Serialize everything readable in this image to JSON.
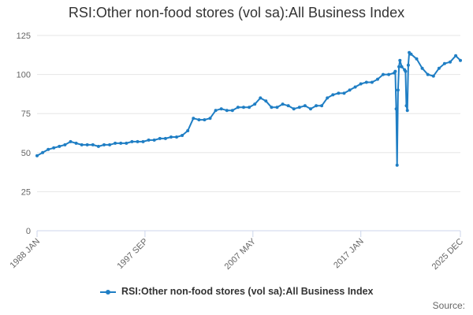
{
  "colors": {
    "series": "#1f7ec4",
    "grid": "#e6e6e6",
    "axis": "#ccd6eb",
    "text": "#333333"
  },
  "source_label": "Source:",
  "chart_data": {
    "type": "line",
    "title": "RSI:Other non-food stores (vol sa):All Business Index",
    "xlabel": "",
    "ylabel": "",
    "ylim": [
      0,
      125
    ],
    "yticks": [
      0,
      25,
      50,
      75,
      100,
      125
    ],
    "xticks": [
      "1988 JAN",
      "1997 SEP",
      "2007 MAY",
      "2017 JAN",
      "2025 DEC"
    ],
    "grid": "horizontal",
    "legend_position": "bottom-center",
    "series": [
      {
        "name": "RSI:Other non-food stores (vol sa):All Business Index",
        "x": [
          "1988 JAN",
          "1988 JUL",
          "1989 JAN",
          "1989 JUL",
          "1990 JAN",
          "1990 JUL",
          "1991 JAN",
          "1991 JUL",
          "1992 JAN",
          "1992 JUL",
          "1993 JAN",
          "1993 JUL",
          "1994 JAN",
          "1994 JUL",
          "1995 JAN",
          "1995 JUL",
          "1996 JAN",
          "1996 JUL",
          "1997 JAN",
          "1997 JUL",
          "1998 JAN",
          "1998 JUL",
          "1999 JAN",
          "1999 JUL",
          "2000 JAN",
          "2000 JUL",
          "2001 JAN",
          "2001 JUL",
          "2002 JAN",
          "2002 JUL",
          "2003 JAN",
          "2003 JUL",
          "2004 JAN",
          "2004 JUL",
          "2005 JAN",
          "2005 JUL",
          "2006 JAN",
          "2006 JUL",
          "2007 JAN",
          "2007 JUL",
          "2008 JAN",
          "2008 JUL",
          "2009 JAN",
          "2009 JUL",
          "2010 JAN",
          "2010 JUL",
          "2011 JAN",
          "2011 JUL",
          "2012 JAN",
          "2012 JUL",
          "2013 JAN",
          "2013 JUL",
          "2014 JAN",
          "2014 JUL",
          "2015 JAN",
          "2015 JUL",
          "2016 JAN",
          "2016 JUL",
          "2017 JAN",
          "2017 JUL",
          "2018 JAN",
          "2018 JUL",
          "2019 JAN",
          "2019 JUL",
          "2020 JAN",
          "2020 FEB",
          "2020 MAR",
          "2020 APR",
          "2020 MAY",
          "2020 JUN",
          "2020 JUL",
          "2020 SEP",
          "2020 DEC",
          "2021 JAN",
          "2021 FEB",
          "2021 MAR",
          "2021 APR",
          "2021 MAY",
          "2021 JUL",
          "2022 JAN",
          "2022 JUL",
          "2023 JAN",
          "2023 JUL",
          "2024 JAN",
          "2024 JUL",
          "2025 JAN",
          "2025 JUL",
          "2025 DEC"
        ],
        "values": [
          48,
          50,
          52,
          53,
          54,
          55,
          57,
          56,
          55,
          55,
          55,
          54,
          55,
          55,
          56,
          56,
          56,
          57,
          57,
          57,
          58,
          58,
          59,
          59,
          60,
          60,
          61,
          64,
          72,
          71,
          71,
          72,
          77,
          78,
          77,
          77,
          79,
          79,
          79,
          81,
          85,
          83,
          79,
          79,
          81,
          80,
          78,
          79,
          80,
          78,
          80,
          80,
          85,
          87,
          88,
          88,
          90,
          92,
          94,
          95,
          95,
          97,
          100,
          100,
          101,
          102,
          78,
          42,
          90,
          105,
          109,
          105,
          103,
          102,
          80,
          77,
          106,
          114,
          113,
          110,
          104,
          100,
          99,
          104,
          107,
          108,
          112,
          109
        ]
      }
    ]
  }
}
